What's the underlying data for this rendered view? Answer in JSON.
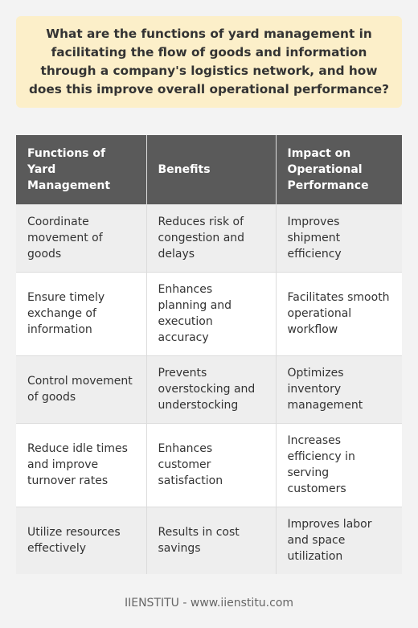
{
  "question": "What are the functions of yard management in facilitating the flow of goods and information through a company's logistics network, and how does this improve overall operational performance?",
  "table": {
    "headers": [
      "Functions of Yard Management",
      "Benefits",
      "Impact on Operational Performance"
    ],
    "rows": [
      [
        "Coordinate movement of goods",
        "Reduces risk of congestion and delays",
        "Improves shipment efficiency"
      ],
      [
        "Ensure timely exchange of information",
        "Enhances planning and execution accuracy",
        "Facilitates smooth operational workflow"
      ],
      [
        "Control movement of goods",
        "Prevents overstocking and understocking",
        "Optimizes inventory management"
      ],
      [
        "Reduce idle times and improve turnover rates",
        "Enhances customer satisfaction",
        "Increases efficiency in serving customers"
      ],
      [
        "Utilize resources effectively",
        "Results in cost savings",
        "Improves labor and space utilization"
      ]
    ]
  },
  "footer": "IIENSTITU - www.iienstitu.com",
  "colors": {
    "background": "#f3f3f3",
    "question_box": "#fcefc9",
    "header_row": "#5a5a5a",
    "row_shaded": "#eeeeee",
    "row_plain": "#ffffff"
  }
}
